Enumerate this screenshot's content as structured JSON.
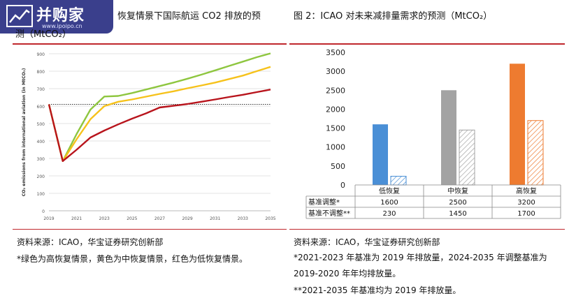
{
  "left": {
    "title_line1": "恢复情景下国际航运 CO2 排放的预",
    "title_line2": "测（MtCO₂）",
    "source": "资料来源：ICAO，华宝证券研究创新部",
    "note": "*绿色为高恢复情景，黄色为中恢复情景，红色为低恢复情景。"
  },
  "right": {
    "title": "图 2：ICAO 对未来减排量需求的预测（MtCO₂）",
    "source": "资料来源：ICAO，华宝证券研究创新部",
    "note1": "*2021-2023 年基准为 2019 年排放量，2024-2035 年调整基准为",
    "note2": "2019-2020 年年均排放量。",
    "note3": "**2021-2035 年基准均为 2019 年排放量。"
  },
  "logo": {
    "text": "并购家",
    "sub": "www.ipoipo.cn"
  },
  "colors": {
    "rule": "#c0272d",
    "green": "#8ec63f",
    "yellow": "#f6c21b",
    "red": "#b8141c",
    "blue": "#4a8fd6",
    "gray": "#a3a3a3",
    "orange": "#ee7b30"
  },
  "chart_data": [
    {
      "type": "line",
      "ylabel": "CO₂ emissions from international aviation (in MtCO₂)",
      "xlabel": "",
      "x": [
        2019,
        2020,
        2021,
        2022,
        2023,
        2024,
        2025,
        2026,
        2027,
        2028,
        2029,
        2030,
        2031,
        2032,
        2033,
        2034,
        2035
      ],
      "xticks": [
        "2019",
        "2021",
        "2023",
        "2025",
        "2027",
        "2029",
        "2031",
        "2033",
        "2035"
      ],
      "yticks": [
        "0",
        "100",
        "200",
        "300",
        "400",
        "500",
        "600",
        "700",
        "800",
        "900"
      ],
      "ylim": [
        0,
        900
      ],
      "xlim": [
        2019,
        2035
      ],
      "reference_line": 610,
      "series": [
        {
          "color_key": "green",
          "values": [
            610,
            285,
            440,
            580,
            655,
            658,
            675,
            695,
            715,
            735,
            757,
            780,
            805,
            830,
            855,
            880,
            905
          ]
        },
        {
          "color_key": "yellow",
          "values": [
            610,
            285,
            410,
            525,
            600,
            625,
            638,
            654,
            670,
            685,
            702,
            718,
            735,
            755,
            775,
            800,
            825
          ]
        },
        {
          "color_key": "red",
          "values": [
            610,
            285,
            350,
            420,
            460,
            495,
            528,
            558,
            592,
            602,
            612,
            625,
            638,
            652,
            665,
            680,
            695
          ]
        }
      ]
    },
    {
      "type": "bar",
      "categories": [
        "低恢复",
        "中恢复",
        "高恢复"
      ],
      "yticks": [
        "0",
        "500",
        "1000",
        "1500",
        "2000",
        "2500",
        "3000",
        "3500"
      ],
      "ylim": [
        0,
        3500
      ],
      "series": [
        {
          "name": "基准调整*",
          "values": [
            1600,
            2500,
            3200
          ],
          "style": "solid"
        },
        {
          "name": "基准不调整**",
          "values": [
            230,
            1450,
            1700
          ],
          "style": "hatched"
        }
      ],
      "bar_colors": [
        "blue",
        "gray",
        "orange"
      ],
      "table": {
        "header": [
          "",
          "低恢复",
          "中恢复",
          "高恢复"
        ],
        "rows": [
          [
            "基准调整*",
            "1600",
            "2500",
            "3200"
          ],
          [
            "基准不调整**",
            "230",
            "1450",
            "1700"
          ]
        ]
      }
    }
  ]
}
